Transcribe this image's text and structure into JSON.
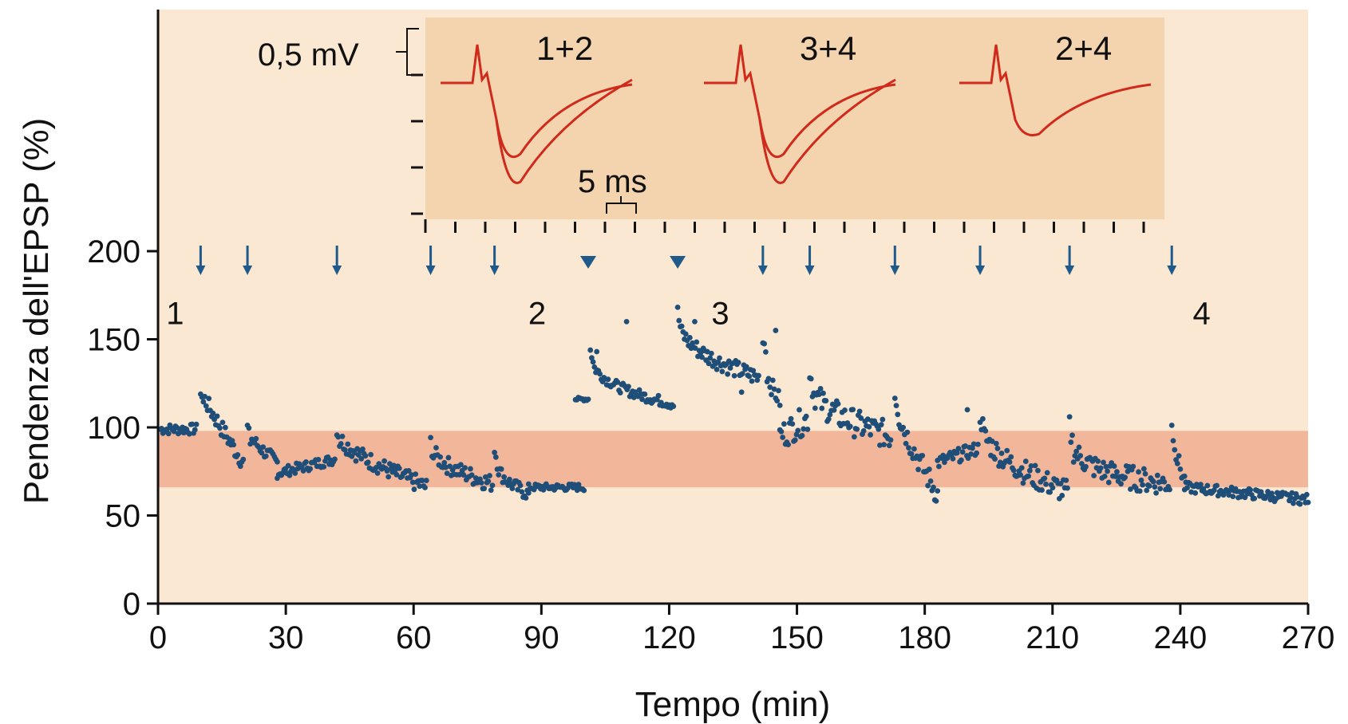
{
  "chart_data": {
    "type": "scatter",
    "title": "",
    "xlabel": "Tempo (min)",
    "ylabel": "Pendenza dell'EPSP (%)",
    "xlim": [
      0,
      270
    ],
    "ylim": [
      0,
      200
    ],
    "x_ticks": [
      0,
      30,
      60,
      90,
      120,
      150,
      180,
      210,
      240,
      270
    ],
    "x_tick_labels": [
      "0",
      "30",
      "60",
      "90",
      "120",
      "150",
      "180",
      "210",
      "240",
      "270"
    ],
    "y_ticks": [
      0,
      50,
      100,
      150,
      200
    ],
    "y_tick_labels": [
      "0",
      "50",
      "100",
      "150",
      "200"
    ],
    "baseline_band": [
      66,
      98
    ],
    "phase_labels": [
      {
        "text": "1",
        "x": 4,
        "y": 165
      },
      {
        "text": "2",
        "x": 89,
        "y": 165
      },
      {
        "text": "3",
        "x": 132,
        "y": 165
      },
      {
        "text": "4",
        "x": 245,
        "y": 165
      }
    ],
    "arrows": [
      10,
      21,
      42,
      64,
      79,
      142,
      153,
      173,
      193,
      214,
      238
    ],
    "triangles": [
      101,
      122
    ],
    "colors": {
      "plot_bg": "#fbe8d2",
      "band": "#f2b69b",
      "inset_bg": "#f4d4ae",
      "points": "#1f4e79",
      "arrow": "#1f5a8a",
      "trace": "#cf2a1c"
    },
    "inset": {
      "scale_mv": "0,5 mV",
      "scale_ms": "5 ms",
      "trace_labels": [
        "1+2",
        "3+4",
        "2+4"
      ]
    },
    "segments": [
      {
        "x0": 0.5,
        "x1": 9,
        "base": 99,
        "peak": 0,
        "end": 99,
        "noise": 3
      },
      {
        "x0": 10,
        "x1": 20,
        "base": 118,
        "peak": 122,
        "end": 80,
        "noise": 5
      },
      {
        "x0": 21,
        "x1": 28,
        "base": 94,
        "peak": 100,
        "end": 80,
        "noise": 4
      },
      {
        "x0": 28,
        "x1": 41.5,
        "base": 74,
        "peak": 0,
        "end": 82,
        "noise": 3
      },
      {
        "x0": 42,
        "x1": 63,
        "base": 88,
        "peak": 100,
        "end": 66,
        "noise": 5
      },
      {
        "x0": 64,
        "x1": 78.5,
        "base": 80,
        "peak": 92,
        "end": 68,
        "noise": 5
      },
      {
        "x0": 79,
        "x1": 87,
        "base": 72,
        "peak": 88,
        "end": 62,
        "noise": 4
      },
      {
        "x0": 87,
        "x1": 100,
        "base": 66,
        "peak": 0,
        "end": 66,
        "noise": 2
      },
      {
        "x0": 98,
        "x1": 101,
        "base": 116,
        "peak": 0,
        "end": 116,
        "noise": 1
      },
      {
        "x0": 101.5,
        "x1": 121,
        "base": 125,
        "peak": 145,
        "end": 113,
        "noise": 3
      },
      {
        "x0": 122,
        "x1": 141,
        "base": 145,
        "peak": 165,
        "end": 128,
        "noise": 5
      },
      {
        "x0": 142,
        "x1": 146,
        "base": 130,
        "peak": 152,
        "end": 115,
        "noise": 5
      },
      {
        "x0": 146,
        "x1": 152.5,
        "base": 95,
        "peak": 0,
        "end": 105,
        "noise": 8
      },
      {
        "x0": 153,
        "x1": 172,
        "base": 110,
        "peak": 132,
        "end": 95,
        "noise": 8
      },
      {
        "x0": 173,
        "x1": 183,
        "base": 105,
        "peak": 120,
        "end": 62,
        "noise": 7
      },
      {
        "x0": 183,
        "x1": 192.5,
        "base": 80,
        "peak": 0,
        "end": 88,
        "noise": 4
      },
      {
        "x0": 193,
        "x1": 213.5,
        "base": 85,
        "peak": 108,
        "end": 63,
        "noise": 7
      },
      {
        "x0": 214,
        "x1": 237.5,
        "base": 75,
        "peak": 100,
        "end": 68,
        "noise": 7
      },
      {
        "x0": 238,
        "x1": 241,
        "base": 90,
        "peak": 100,
        "end": 70,
        "noise": 5
      },
      {
        "x0": 241,
        "x1": 270,
        "base": 66,
        "peak": 0,
        "end": 59,
        "noise": 3
      }
    ],
    "extra_points": [
      [
        110,
        160
      ],
      [
        126,
        160
      ],
      [
        103,
        143
      ],
      [
        145,
        155
      ],
      [
        190,
        110
      ],
      [
        137,
        120
      ]
    ]
  }
}
